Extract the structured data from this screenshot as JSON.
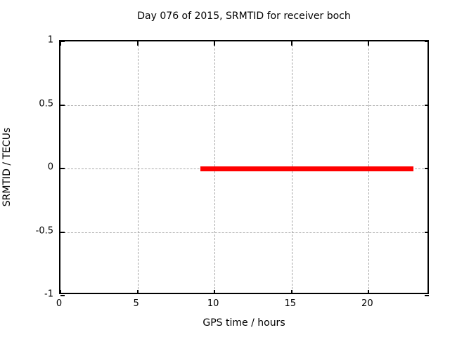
{
  "chart_data": {
    "type": "line",
    "title": "Day 076 of 2015, SRMTID for receiver boch",
    "xlabel": "GPS time / hours",
    "ylabel": "SRMTID / TECUs",
    "xlim": [
      0,
      24
    ],
    "ylim": [
      -1,
      1
    ],
    "x_ticks": [
      0,
      5,
      10,
      15,
      20
    ],
    "x_tick_labels": [
      "0",
      "5",
      "10",
      "15",
      "20"
    ],
    "y_ticks": [
      -1,
      -0.5,
      0,
      0.5,
      1
    ],
    "y_tick_labels": [
      "-1",
      "-0.5",
      "0",
      "0.5",
      "1"
    ],
    "grid": true,
    "legend_position": "none",
    "series": [
      {
        "name": "SRMTID",
        "color": "#ff0000",
        "style": "thick horizontal segment",
        "x": [
          9.1,
          22.9
        ],
        "y": [
          0,
          0
        ]
      }
    ]
  },
  "colors": {
    "background": "#ffffff",
    "border": "#000000",
    "grid": "#a8a8a8",
    "text": "#000000",
    "series_red": "#ff0000"
  }
}
